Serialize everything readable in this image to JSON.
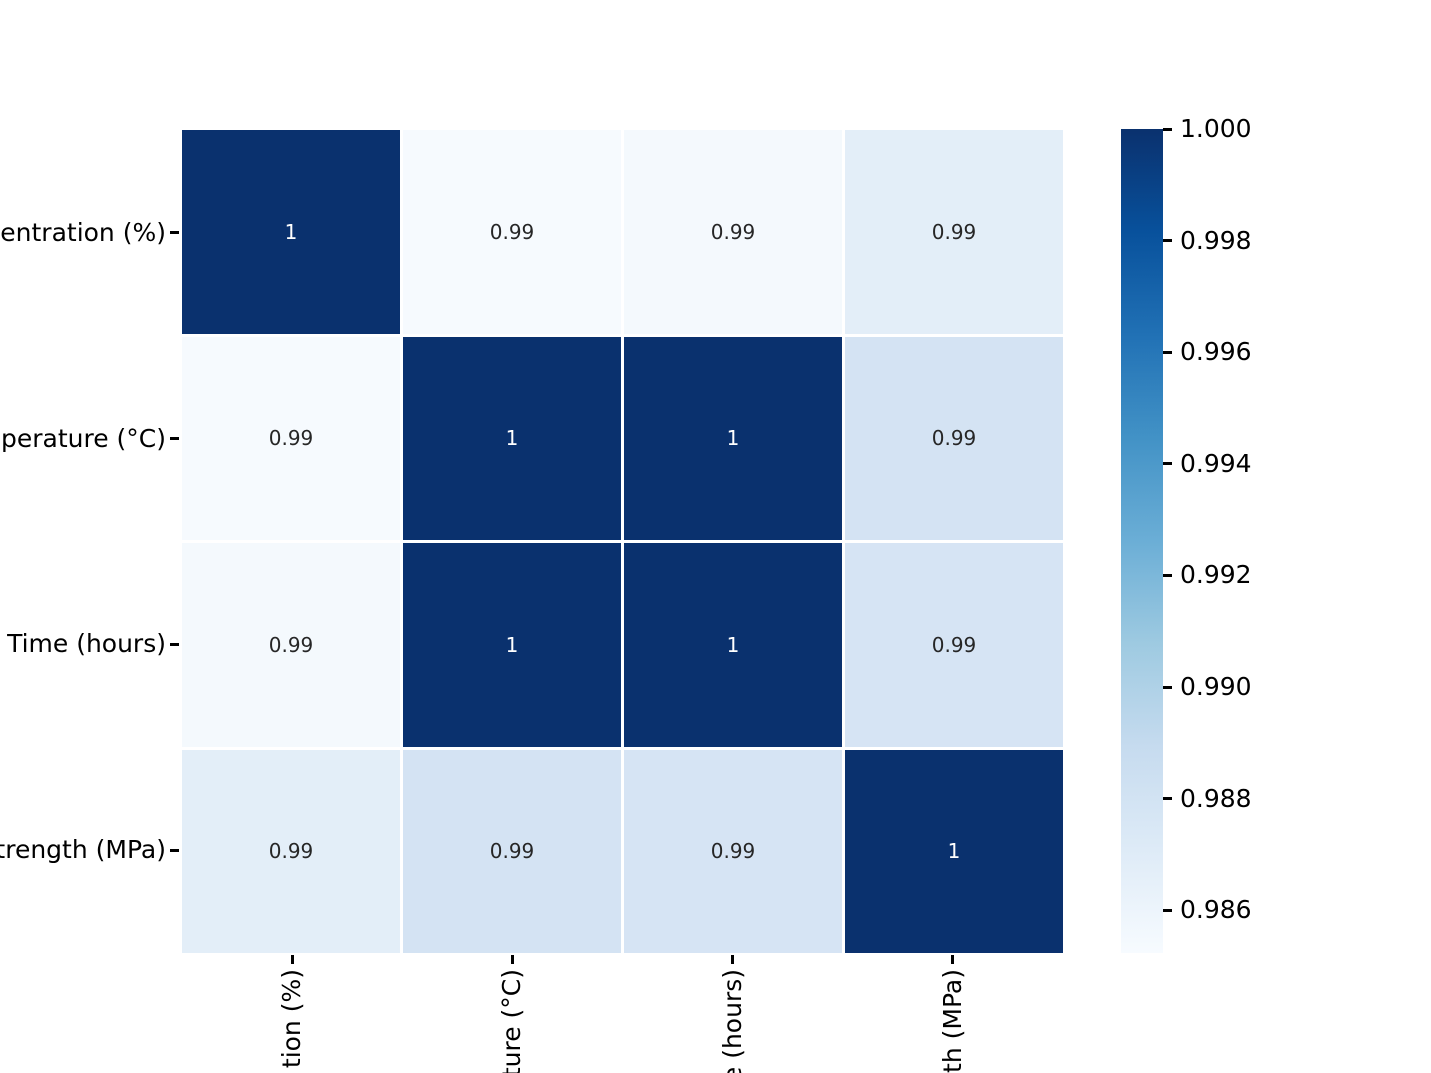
{
  "chart_data": {
    "type": "heatmap",
    "title": "",
    "colormap": "Blues",
    "rows": [
      "entration (%)",
      "perature (°C)",
      "Time (hours)",
      "trength (MPa)"
    ],
    "cols": [
      "tion (%)",
      "ture (°C)",
      "e (hours)",
      "th (MPa)"
    ],
    "labels_note": "axis labels are truncated by the image edges",
    "annotations": [
      [
        "1",
        "0.99",
        "0.99",
        "0.99"
      ],
      [
        "0.99",
        "1",
        "1",
        "0.99"
      ],
      [
        "0.99",
        "1",
        "1",
        "0.99"
      ],
      [
        "0.99",
        "0.99",
        "0.99",
        "1"
      ]
    ],
    "values_est": [
      [
        1.0,
        0.9853,
        0.9855,
        0.9866
      ],
      [
        0.9853,
        1.0,
        0.9996,
        0.9874
      ],
      [
        0.9855,
        0.9996,
        1.0,
        0.9872
      ],
      [
        0.9866,
        0.9874,
        0.9872,
        1.0
      ]
    ],
    "cell_colors": [
      [
        "#0a316e",
        "#f6fafe",
        "#f4f9fd",
        "#e3eef8"
      ],
      [
        "#f6fafe",
        "#0a316e",
        "#0a316e",
        "#d4e3f3"
      ],
      [
        "#f4f9fd",
        "#0a316e",
        "#0a316e",
        "#d6e4f4"
      ],
      [
        "#e3eef8",
        "#d4e3f3",
        "#d6e4f4",
        "#0a316e"
      ]
    ],
    "annot_text_colors": [
      [
        "#ffffff",
        "#262626",
        "#262626",
        "#262626"
      ],
      [
        "#262626",
        "#ffffff",
        "#ffffff",
        "#262626"
      ],
      [
        "#262626",
        "#ffffff",
        "#ffffff",
        "#262626"
      ],
      [
        "#262626",
        "#262626",
        "#262626",
        "#ffffff"
      ]
    ],
    "colorbar": {
      "position": "right",
      "ticks": [
        "1.000",
        "0.998",
        "0.996",
        "0.994",
        "0.992",
        "0.990",
        "0.988",
        "0.986"
      ],
      "top_value": 1.0,
      "bottom_value": 0.9852,
      "gradient_bottom_to_top": [
        "#f7fbff",
        "#deebf7",
        "#c6dbef",
        "#9ecae1",
        "#6baed6",
        "#4292c6",
        "#2171b5",
        "#08519c",
        "#0a316e"
      ]
    },
    "grid": false,
    "background": "#ffffff"
  }
}
